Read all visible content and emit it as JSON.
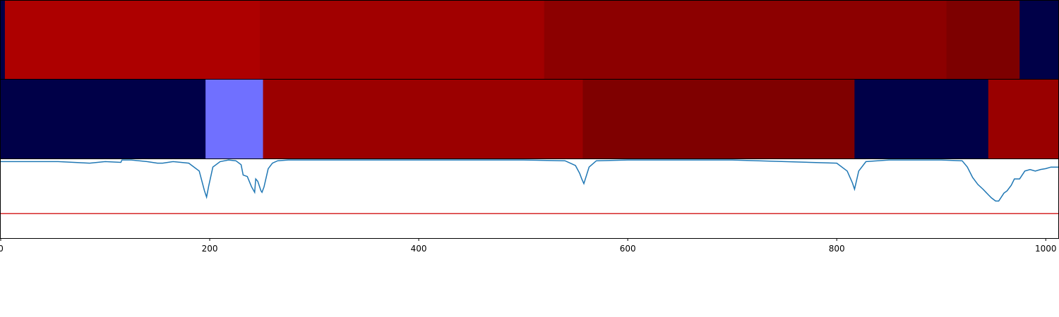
{
  "chart_data": {
    "type": "heatmap",
    "title": "",
    "xlabel": "",
    "ylabel": "",
    "xlim": [
      0,
      1012
    ],
    "x_ticks": [
      "0",
      "200",
      "400",
      "600",
      "800",
      "1000"
    ],
    "x_tick_values": [
      0,
      200,
      400,
      600,
      800,
      1000
    ],
    "legend": "none",
    "grid": false,
    "segment_tracks": [
      {
        "segments": [
          {
            "start": 0,
            "end": 4,
            "color": "#000048"
          },
          {
            "start": 4,
            "end": 248,
            "color": "#ad0000"
          },
          {
            "start": 248,
            "end": 520,
            "color": "#a10000"
          },
          {
            "start": 520,
            "end": 905,
            "color": "#8c0000"
          },
          {
            "start": 905,
            "end": 975,
            "color": "#7d0000"
          },
          {
            "start": 975,
            "end": 1012,
            "color": "#000048"
          }
        ]
      },
      {
        "segments": [
          {
            "start": 0,
            "end": 196,
            "color": "#000048"
          },
          {
            "start": 196,
            "end": 251,
            "color": "#7070ff"
          },
          {
            "start": 251,
            "end": 557,
            "color": "#9b0000"
          },
          {
            "start": 557,
            "end": 817,
            "color": "#7f0000"
          },
          {
            "start": 817,
            "end": 945,
            "color": "#000048"
          },
          {
            "start": 945,
            "end": 1012,
            "color": "#990000"
          }
        ]
      }
    ],
    "line_panel": {
      "ylim": [
        0,
        1
      ],
      "threshold": 0.31,
      "threshold_color": "#d62728",
      "line_color": "#1f77b4",
      "x": [
        0,
        20,
        40,
        55,
        70,
        85,
        100,
        115,
        116,
        125,
        140,
        150,
        155,
        165,
        180,
        190,
        195,
        197,
        199,
        203,
        210,
        218,
        225,
        230,
        232,
        236,
        240,
        243,
        244,
        246,
        249,
        250,
        252,
        256,
        260,
        265,
        275,
        300,
        350,
        400,
        450,
        500,
        540,
        550,
        554,
        556,
        558,
        563,
        570,
        600,
        700,
        800,
        810,
        815,
        817,
        821,
        828,
        850,
        900,
        920,
        925,
        930,
        935,
        940,
        945,
        948,
        952,
        955,
        960,
        963,
        967,
        970,
        975,
        980,
        985,
        990,
        995,
        1000,
        1005,
        1012
      ],
      "y": [
        0.97,
        0.97,
        0.97,
        0.97,
        0.96,
        0.95,
        0.97,
        0.96,
        0.99,
        0.99,
        0.97,
        0.95,
        0.95,
        0.97,
        0.95,
        0.85,
        0.6,
        0.52,
        0.66,
        0.9,
        0.97,
        0.99,
        0.98,
        0.93,
        0.8,
        0.78,
        0.65,
        0.58,
        0.75,
        0.72,
        0.6,
        0.58,
        0.65,
        0.88,
        0.95,
        0.98,
        0.99,
        0.99,
        0.99,
        0.99,
        0.99,
        0.99,
        0.98,
        0.92,
        0.82,
        0.75,
        0.69,
        0.9,
        0.98,
        0.99,
        0.99,
        0.95,
        0.85,
        0.7,
        0.62,
        0.85,
        0.97,
        0.99,
        0.99,
        0.98,
        0.9,
        0.77,
        0.68,
        0.62,
        0.55,
        0.51,
        0.47,
        0.47,
        0.57,
        0.6,
        0.67,
        0.75,
        0.75,
        0.85,
        0.87,
        0.85,
        0.87,
        0.88,
        0.9,
        0.9
      ]
    }
  }
}
